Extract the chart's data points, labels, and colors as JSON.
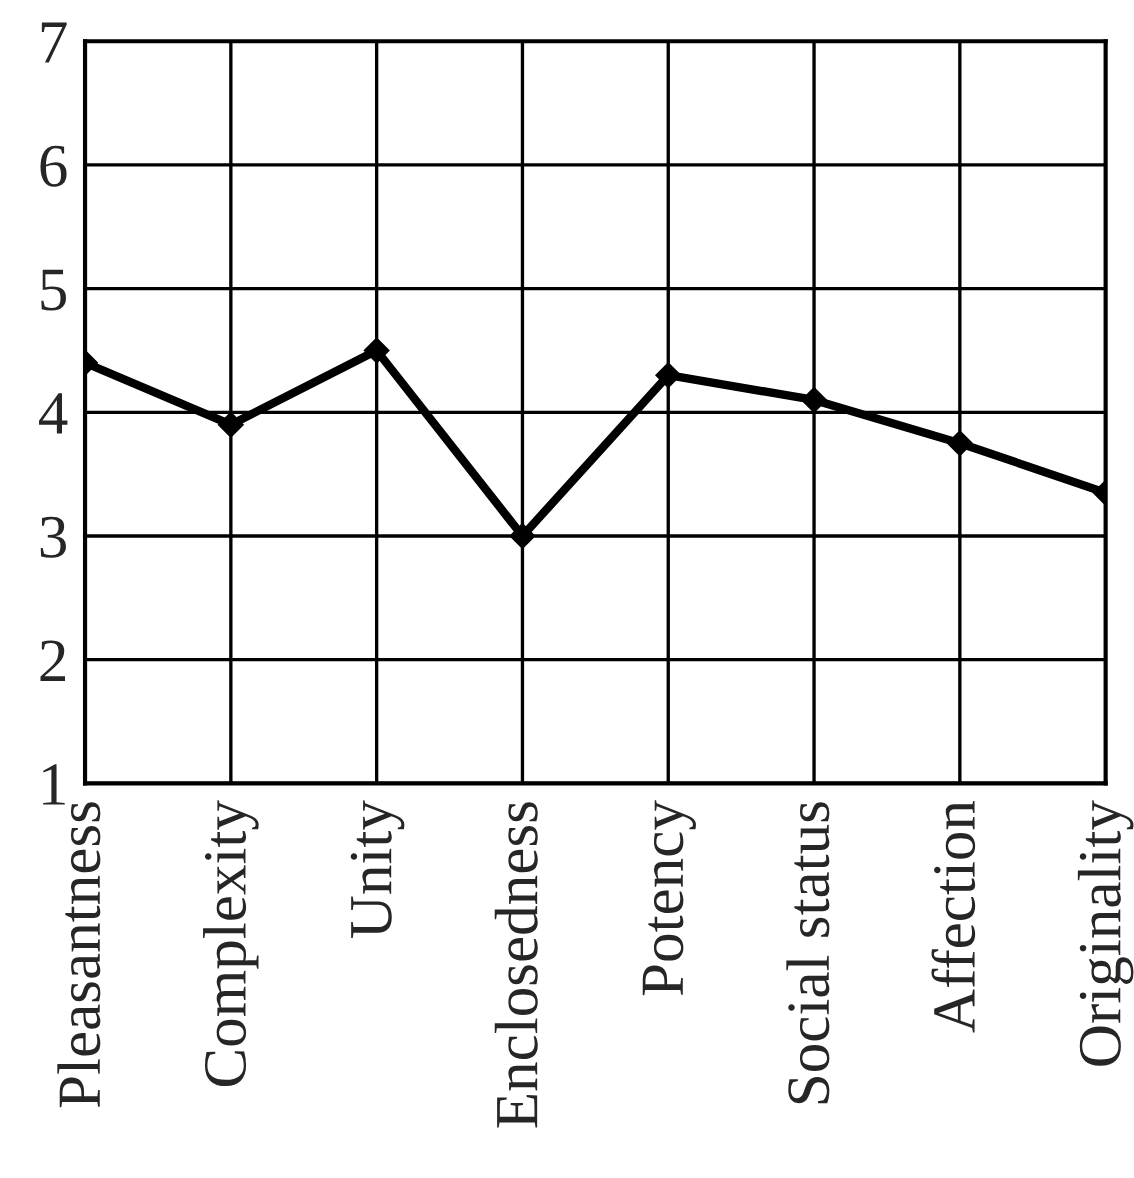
{
  "chart_data": {
    "type": "line",
    "categories": [
      "Pleasantness",
      "Complexity",
      "Unity",
      "Enclosedness",
      "Potency",
      "Social status",
      "Affection",
      "Originality"
    ],
    "series": [
      {
        "color": "#000000",
        "values": [
          4.4,
          3.9,
          4.5,
          3.0,
          4.3,
          4.1,
          3.75,
          3.35
        ]
      }
    ],
    "ylim": [
      1,
      7
    ],
    "yticks": [
      1,
      2,
      3,
      4,
      5,
      6,
      7
    ],
    "grid": true,
    "marker": "diamond",
    "line_style": "solid"
  }
}
